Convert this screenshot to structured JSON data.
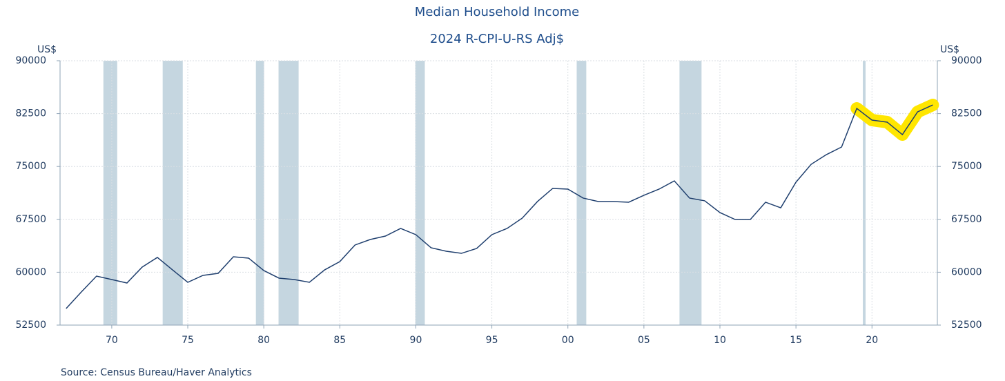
{
  "chart_data": {
    "type": "line",
    "title": "Median Household Income",
    "subtitle": "2024 R-CPI-U-RS Adj$",
    "y_label": "US$",
    "y2_label": "US$",
    "source": "Source:  Census Bureau/Haver Analytics",
    "x": [
      1967,
      1968,
      1969,
      1970,
      1971,
      1972,
      1973,
      1974,
      1975,
      1976,
      1977,
      1978,
      1979,
      1980,
      1981,
      1982,
      1983,
      1984,
      1985,
      1986,
      1987,
      1988,
      1989,
      1990,
      1991,
      1992,
      1993,
      1994,
      1995,
      1996,
      1997,
      1998,
      1999,
      2000,
      2001,
      2002,
      2003,
      2004,
      2005,
      2006,
      2007,
      2008,
      2009,
      2010,
      2011,
      2012,
      2013,
      2014,
      2015,
      2016,
      2017,
      2018,
      2019,
      2020,
      2021,
      2022,
      2023,
      2024
    ],
    "series": [
      {
        "color": "#1f3f6e",
        "values": [
          54850,
          57200,
          59450,
          58960,
          58470,
          60730,
          62100,
          60330,
          58570,
          59550,
          59840,
          62190,
          62000,
          60240,
          59160,
          58960,
          58570,
          60330,
          61510,
          63860,
          64640,
          65130,
          66210,
          65330,
          63470,
          62980,
          62680,
          63370,
          65330,
          66210,
          67680,
          70030,
          71890,
          71790,
          70520,
          70030,
          70030,
          69930,
          70910,
          71790,
          72960,
          70520,
          70130,
          68460,
          67480,
          67480,
          69930,
          69140,
          72770,
          75310,
          76680,
          77760,
          83240,
          81580,
          81290,
          79520,
          82750,
          83730
        ]
      }
    ],
    "recessions": [
      [
        1969.45,
        1970.36
      ],
      [
        1973.35,
        1974.67
      ],
      [
        1979.48,
        1980.02
      ],
      [
        1980.97,
        1982.29
      ],
      [
        1989.96,
        1990.59
      ],
      [
        2000.58,
        2001.21
      ],
      [
        2007.34,
        2008.79
      ],
      [
        2019.4,
        2019.58
      ]
    ],
    "recession_color": "#c5d6e0",
    "highlight": {
      "x": [
        2019,
        2024
      ],
      "color": "#ffe600"
    },
    "xlim": [
      1966.6,
      2024.3
    ],
    "xticks": [
      {
        "value": 1970,
        "label": "70"
      },
      {
        "value": 1975,
        "label": "75"
      },
      {
        "value": 1980,
        "label": "80"
      },
      {
        "value": 1985,
        "label": "85"
      },
      {
        "value": 1990,
        "label": "90"
      },
      {
        "value": 1995,
        "label": "95"
      },
      {
        "value": 2000,
        "label": "00"
      },
      {
        "value": 2005,
        "label": "05"
      },
      {
        "value": 2010,
        "label": "10"
      },
      {
        "value": 2015,
        "label": "15"
      },
      {
        "value": 2020,
        "label": "20"
      }
    ],
    "ylim": [
      52500,
      90000
    ],
    "yticks": [
      52500,
      60000,
      67500,
      75000,
      82500,
      90000
    ],
    "grid": true
  }
}
